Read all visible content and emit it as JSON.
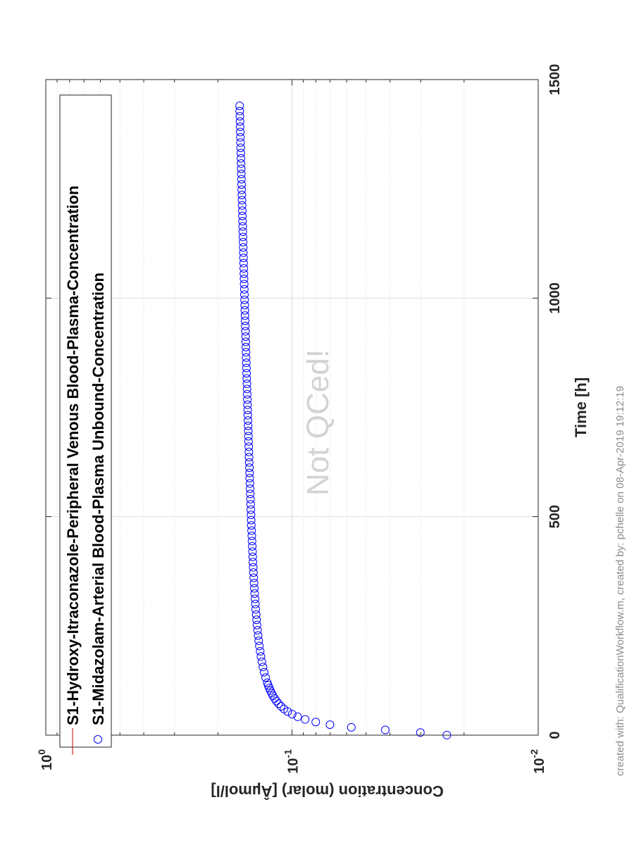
{
  "chart_data": {
    "type": "scatter",
    "orientation": "rotated-90-ccw",
    "xlabel": "Time [h]",
    "ylabel": "Concentration (molar) [Âµmol/l]",
    "xlim": [
      0,
      1500
    ],
    "ylim": [
      0.01,
      1
    ],
    "yscale": "log",
    "grid": true,
    "legend_position": "top-left",
    "x_ticks": [
      "0",
      "500",
      "1000",
      "1500"
    ],
    "y_ticks": [
      {
        "base": "10",
        "exp": "-2",
        "value": 0.01
      },
      {
        "base": "10",
        "exp": "-1",
        "value": 0.1
      },
      {
        "base": "10",
        "exp": "0",
        "value": 1
      }
    ],
    "series": [
      {
        "name": "S1-Hydroxy-Itraconazole-Peripheral Venous Blood-Plasma-Concentration",
        "marker": "line",
        "color": "#cc0000",
        "x": [],
        "y": []
      },
      {
        "name": "S1-Midazolam-Arterial Blood-Plasma Unbound-Concentration",
        "marker": "circle",
        "color": "#0000ff",
        "x": [
          0.1,
          6,
          12,
          18,
          24,
          30,
          36,
          42,
          48,
          54,
          60,
          66,
          72,
          78,
          84,
          90,
          96,
          102,
          108,
          114,
          120,
          132,
          144,
          156,
          168,
          180,
          192,
          204,
          216,
          228,
          240,
          252,
          264,
          276,
          288,
          300,
          312,
          324,
          336,
          348,
          360,
          372,
          384,
          396,
          408,
          420,
          432,
          444,
          456,
          468,
          480,
          492,
          504,
          516,
          528,
          540,
          552,
          564,
          576,
          588,
          600,
          612,
          624,
          636,
          648,
          660,
          672,
          684,
          696,
          708,
          720,
          732,
          744,
          756,
          768,
          780,
          792,
          804,
          816,
          828,
          840,
          852,
          864,
          876,
          888,
          900,
          912,
          924,
          936,
          948,
          960,
          972,
          984,
          996,
          1008,
          1020,
          1032,
          1044,
          1056,
          1068,
          1080,
          1092,
          1104,
          1116,
          1128,
          1140,
          1152,
          1164,
          1176,
          1188,
          1200,
          1212,
          1224,
          1236,
          1248,
          1260,
          1272,
          1284,
          1296,
          1308,
          1320,
          1332,
          1344,
          1356,
          1368,
          1380,
          1392,
          1404,
          1416,
          1428,
          1440
        ],
        "y": [
          0.0235,
          0.0301,
          0.0418,
          0.0574,
          0.0701,
          0.0801,
          0.0884,
          0.0948,
          0.0998,
          0.1041,
          0.1078,
          0.1108,
          0.1134,
          0.1157,
          0.1176,
          0.1195,
          0.121,
          0.1224,
          0.1237,
          0.1249,
          0.126,
          0.128,
          0.1298,
          0.1312,
          0.1325,
          0.1337,
          0.1347,
          0.1357,
          0.1365,
          0.1373,
          0.138,
          0.1387,
          0.1393,
          0.1398,
          0.1404,
          0.1409,
          0.1413,
          0.1418,
          0.1422,
          0.1426,
          0.143,
          0.1434,
          0.1437,
          0.1441,
          0.1444,
          0.1447,
          0.145,
          0.1453,
          0.1456,
          0.1459,
          0.1462,
          0.1465,
          0.1467,
          0.147,
          0.1472,
          0.1475,
          0.1477,
          0.148,
          0.1482,
          0.1485,
          0.1487,
          0.1489,
          0.1492,
          0.1494,
          0.1496,
          0.1498,
          0.1501,
          0.1503,
          0.1505,
          0.1507,
          0.1509,
          0.1512,
          0.1514,
          0.1516,
          0.1518,
          0.152,
          0.1522,
          0.1524,
          0.1527,
          0.1529,
          0.1531,
          0.1533,
          0.1535,
          0.1537,
          0.1539,
          0.1541,
          0.1543,
          0.1545,
          0.1548,
          0.155,
          0.1552,
          0.1554,
          0.1556,
          0.1558,
          0.156,
          0.1562,
          0.1564,
          0.1566,
          0.1568,
          0.157,
          0.1572,
          0.1574,
          0.1576,
          0.1578,
          0.158,
          0.1582,
          0.1584,
          0.1586,
          0.1588,
          0.159,
          0.1592,
          0.1594,
          0.1596,
          0.1598,
          0.16,
          0.1602,
          0.1604,
          0.1606,
          0.1608,
          0.161,
          0.1612,
          0.1614,
          0.1616,
          0.1618,
          0.162,
          0.1622,
          0.1624,
          0.1626,
          0.1628,
          0.163,
          0.1632
        ]
      }
    ]
  },
  "watermark": "Not QCed!",
  "footer": "created with: QualificationWorkflow.m, created by: pchelle on 08-Apr-2019 19:12:19"
}
